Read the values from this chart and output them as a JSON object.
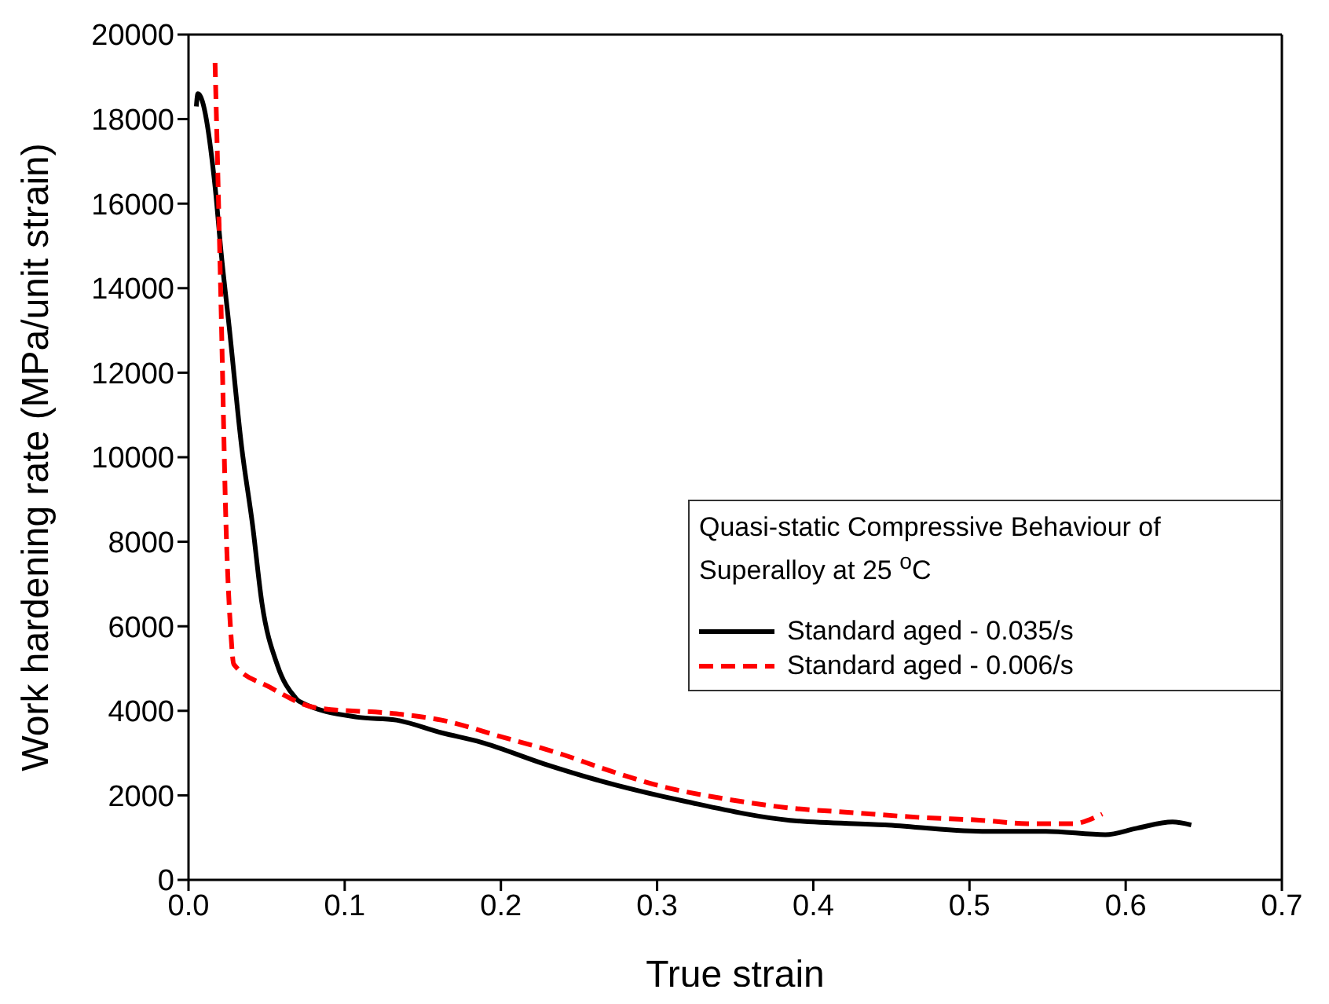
{
  "chart_data": {
    "type": "line",
    "xlabel": "True strain",
    "ylabel": "Work hardening rate (MPa/unit strain)",
    "legend_title": "Quasi-static Compressive Behaviour of Superalloy at 25 $^{o}$C",
    "xlim": [
      0,
      0.7
    ],
    "xticks": [
      {
        "value": 0,
        "label": "0.0"
      },
      0.1,
      0.2,
      0.3,
      0.4,
      0.5,
      0.6,
      0.7
    ],
    "ylim": [
      0,
      20000
    ],
    "yticks": [
      0,
      2000,
      4000,
      6000,
      8000,
      10000,
      12000,
      14000,
      16000,
      18000,
      20000
    ],
    "legend": "right",
    "marker": "none",
    "series": [
      {
        "name": "Standard aged - 0.035/s",
        "color": "#000000",
        "line_style": "solid",
        "x": [
          0.005,
          0.006,
          0.017,
          0.021,
          0.026,
          0.034,
          0.041,
          0.047,
          0.057,
          0.068,
          0.071,
          0.108,
          0.133,
          0.162,
          0.187,
          0.228,
          0.261,
          0.319,
          0.385,
          0.446,
          0.508,
          0.549,
          0.587,
          0.607,
          0.63,
          0.642
        ],
        "values": [
          18300,
          18600,
          16400,
          14800,
          13100,
          10250,
          8400,
          6550,
          5070,
          4330,
          4220,
          3850,
          3780,
          3480,
          3260,
          2740,
          2370,
          1850,
          1410,
          1300,
          1150,
          1150,
          1070,
          1220,
          1370,
          1300
        ]
      },
      {
        "name": "Standard aged - 0.006/s",
        "color": "#ff0000",
        "line_style": "dashed",
        "x": [
          0.017,
          0.021,
          0.024,
          0.027,
          0.029,
          0.052,
          0.082,
          0.133,
          0.162,
          0.199,
          0.24,
          0.269,
          0.302,
          0.343,
          0.385,
          0.426,
          0.467,
          0.508,
          0.537,
          0.566,
          0.585
        ],
        "values": [
          19330,
          13300,
          8400,
          5900,
          5100,
          4560,
          4070,
          3930,
          3780,
          3400,
          2960,
          2590,
          2220,
          1920,
          1700,
          1590,
          1480,
          1410,
          1330,
          1330,
          1560
        ]
      }
    ]
  }
}
